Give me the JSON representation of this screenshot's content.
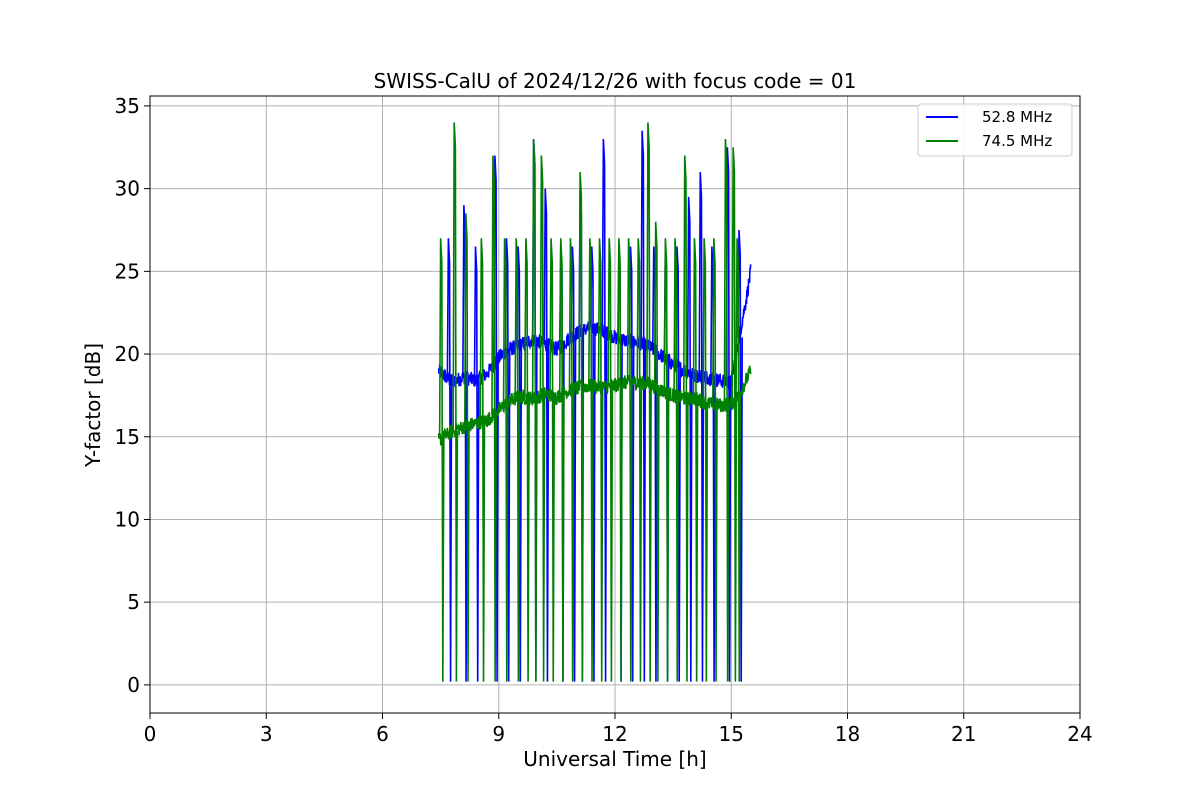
{
  "chart_data": {
    "type": "line",
    "title": "SWISS-CalU of 2024/12/26 with focus code = 01",
    "xlabel": "Universal Time [h]",
    "ylabel": "Y-factor [dB]",
    "xlim": [
      0,
      24
    ],
    "ylim": [
      -1.7,
      35.6
    ],
    "xticks": [
      0,
      3,
      6,
      9,
      12,
      15,
      18,
      21,
      24
    ],
    "yticks": [
      0,
      5,
      10,
      15,
      20,
      25,
      30,
      35
    ],
    "xtick_labels": [
      "0",
      "3",
      "6",
      "9",
      "12",
      "15",
      "18",
      "21",
      "24"
    ],
    "ytick_labels": [
      "0",
      "5",
      "10",
      "15",
      "20",
      "25",
      "30",
      "35"
    ],
    "grid": true,
    "legend_position": "top-right",
    "series": [
      {
        "name": "52.8 MHz",
        "color": "#0000ff",
        "x": [
          7.45,
          7.8,
          8.1,
          8.4,
          8.7,
          9.0,
          9.3,
          9.6,
          9.9,
          10.2,
          10.5,
          10.8,
          11.1,
          11.4,
          11.7,
          12.0,
          12.3,
          12.6,
          12.9,
          13.2,
          13.5,
          13.8,
          14.1,
          14.4,
          14.7,
          15.0,
          15.2,
          15.4,
          15.5
        ],
        "y": [
          19.0,
          18.3,
          18.6,
          18.4,
          18.8,
          19.8,
          20.3,
          20.6,
          20.9,
          20.6,
          20.3,
          20.9,
          21.4,
          21.6,
          21.4,
          21.0,
          20.8,
          20.7,
          20.4,
          19.9,
          19.4,
          19.0,
          18.7,
          18.6,
          18.4,
          18.3,
          21.0,
          23.5,
          25.0
        ],
        "spike_times": [
          7.7,
          8.1,
          8.4,
          8.9,
          9.2,
          9.5,
          9.9,
          10.2,
          10.6,
          10.9,
          11.1,
          11.4,
          11.7,
          12.1,
          12.4,
          12.7,
          13.0,
          13.3,
          13.6,
          13.9,
          14.2,
          14.5,
          14.9,
          15.2
        ],
        "spike_peaks": [
          27.0,
          29.0,
          26.5,
          32.0,
          27.0,
          26.5,
          33.0,
          30.0,
          26.5,
          26.5,
          30.0,
          26.5,
          33.0,
          26.5,
          26.5,
          33.5,
          26.5,
          26.5,
          26.5,
          29.5,
          31.0,
          26.5,
          32.5,
          27.5
        ]
      },
      {
        "name": "74.5 MHz",
        "color": "#008000",
        "x": [
          7.45,
          7.8,
          8.1,
          8.4,
          8.7,
          9.0,
          9.3,
          9.6,
          9.9,
          10.2,
          10.5,
          10.8,
          11.1,
          11.4,
          11.7,
          12.0,
          12.3,
          12.6,
          12.9,
          13.2,
          13.5,
          13.8,
          14.1,
          14.4,
          14.7,
          15.0,
          15.2,
          15.4,
          15.5
        ],
        "y": [
          14.8,
          15.3,
          15.6,
          15.8,
          16.0,
          16.6,
          17.2,
          17.4,
          17.3,
          17.6,
          17.4,
          17.8,
          18.0,
          18.1,
          18.0,
          18.1,
          18.3,
          18.3,
          18.2,
          17.8,
          17.5,
          17.3,
          17.3,
          17.0,
          16.9,
          17.0,
          17.5,
          18.5,
          19.0
        ],
        "spike_times": [
          7.5,
          7.85,
          8.15,
          8.55,
          8.85,
          9.15,
          9.45,
          9.7,
          9.9,
          10.1,
          10.35,
          10.6,
          10.85,
          11.1,
          11.35,
          11.6,
          11.85,
          12.1,
          12.35,
          12.6,
          12.85,
          13.05,
          13.3,
          13.55,
          13.8,
          14.05,
          14.3,
          14.55,
          14.85,
          15.05,
          15.15
        ],
        "spike_peaks": [
          27.0,
          34.0,
          28.5,
          27.0,
          32.0,
          27.0,
          27.0,
          27.0,
          33.0,
          32.0,
          27.0,
          27.0,
          27.0,
          31.0,
          27.0,
          27.0,
          27.0,
          27.0,
          27.0,
          27.0,
          34.0,
          28.0,
          27.0,
          27.0,
          32.0,
          27.0,
          27.0,
          27.0,
          33.0,
          32.5,
          27.0
        ]
      }
    ]
  }
}
